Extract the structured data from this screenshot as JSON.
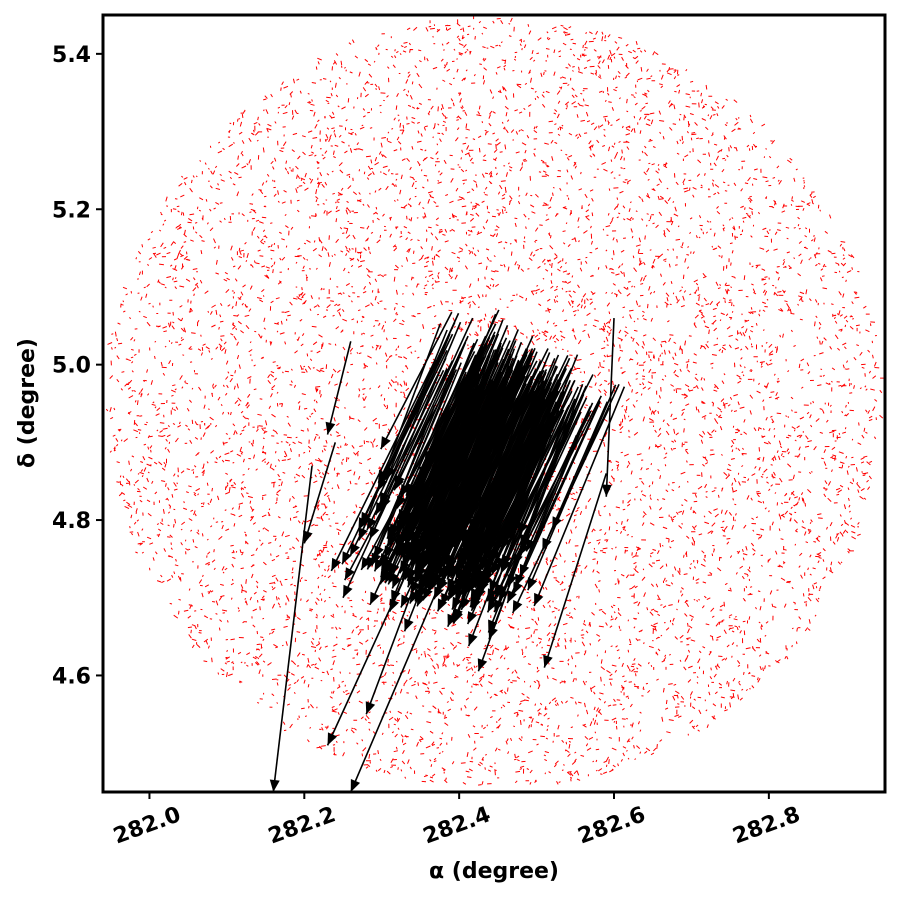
{
  "chart_data": {
    "type": "scatter",
    "title": "",
    "xlabel": "α  (degree)",
    "ylabel": "δ (degree)",
    "xlim": [
      281.94,
      282.95
    ],
    "ylim": [
      4.45,
      5.45
    ],
    "x_ticks": [
      282.0,
      282.2,
      282.4,
      282.6,
      282.8
    ],
    "x_tick_labels": [
      "282.0",
      "282.2",
      "282.4",
      "282.6",
      "282.8"
    ],
    "y_ticks": [
      4.6,
      4.8,
      5.0,
      5.2,
      5.4
    ],
    "y_tick_labels": [
      "4.6",
      "4.8",
      "5.0",
      "5.2",
      "5.4"
    ],
    "grid": false,
    "x_tick_rotation": 20,
    "series": [
      {
        "kind": "field-stars-proper-motion",
        "color": "#ff0000",
        "marker": "short line segments",
        "field_center": [
          282.445,
          4.95
        ],
        "field_radius_deg": 0.5,
        "approx_count": 9000
      },
      {
        "kind": "cluster-members-proper-motion",
        "color": "#000000",
        "marker": "arrows",
        "cluster_center": [
          282.44,
          4.93
        ],
        "dominant_direction": "toward lower-left (decreasing α and δ)",
        "highlighted_arrows": [
          {
            "from": [
              282.6,
              5.06
            ],
            "to": [
              282.59,
              4.83
            ]
          },
          {
            "from": [
              282.59,
              4.86
            ],
            "to": [
              282.51,
              4.61
            ]
          },
          {
            "from": [
              282.21,
              4.87
            ],
            "to": [
              282.16,
              4.45
            ]
          },
          {
            "from": [
              282.38,
              4.73
            ],
            "to": [
              282.26,
              4.45
            ]
          },
          {
            "from": [
              282.34,
              4.75
            ],
            "to": [
              282.23,
              4.51
            ]
          },
          {
            "from": [
              282.37,
              4.79
            ],
            "to": [
              282.28,
              4.55
            ]
          },
          {
            "from": [
              282.26,
              5.03
            ],
            "to": [
              282.23,
              4.91
            ]
          },
          {
            "from": [
              282.24,
              4.9
            ],
            "to": [
              282.2,
              4.77
            ]
          },
          {
            "from": [
              282.31,
              4.83
            ],
            "to": [
              282.25,
              4.7
            ]
          }
        ]
      }
    ]
  }
}
